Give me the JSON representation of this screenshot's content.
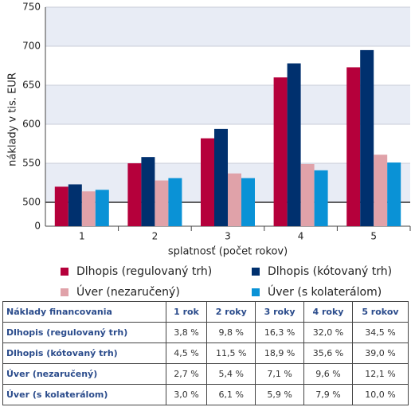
{
  "chart_data": {
    "type": "bar",
    "categories": [
      "1",
      "2",
      "3",
      "4",
      "5"
    ],
    "series": [
      {
        "name": "Dlhopis (regulovaný trh)",
        "color": "#b5003b",
        "values": [
          520,
          550,
          582,
          660,
          673
        ]
      },
      {
        "name": "Dlhopis (kótovaný trh)",
        "color": "#00306e",
        "values": [
          523,
          558,
          594,
          678,
          695
        ]
      },
      {
        "name": "Úver (nezaručený)",
        "color": "#e0a2a9",
        "values": [
          514,
          528,
          537,
          549,
          561
        ]
      },
      {
        "name": "Úver (s kolaterálom)",
        "color": "#0a92d6",
        "values": [
          516,
          531,
          531,
          541,
          551
        ]
      }
    ],
    "ylim": [
      0,
      750
    ],
    "yticks": [
      0,
      500,
      550,
      600,
      650,
      700,
      750
    ],
    "y_label": "náklady v tis. EUR",
    "x_label": "splatnosť (počet rokov)",
    "grid": true
  },
  "table": {
    "header": [
      "Náklady financovania",
      "1 rok",
      "2 roky",
      "3 roky",
      "4 roky",
      "5 rokov"
    ],
    "rows": [
      [
        "Dlhopis (regulovaný trh)",
        "3,8 %",
        "9,8 %",
        "16,3 %",
        "32,0 %",
        "34,5 %"
      ],
      [
        "Dlhopis (kótovaný trh)",
        "4,5 %",
        "11,5 %",
        "18,9 %",
        "35,6 %",
        "39,0 %"
      ],
      [
        "Úver (nezaručený)",
        "2,7 %",
        "5,4 %",
        "7,1 %",
        "9,6 %",
        "12,1 %"
      ],
      [
        "Úver (s kolaterálom)",
        "3,0 %",
        "6,1 %",
        "5,9 %",
        "7,9 %",
        "10,0 %"
      ]
    ]
  }
}
